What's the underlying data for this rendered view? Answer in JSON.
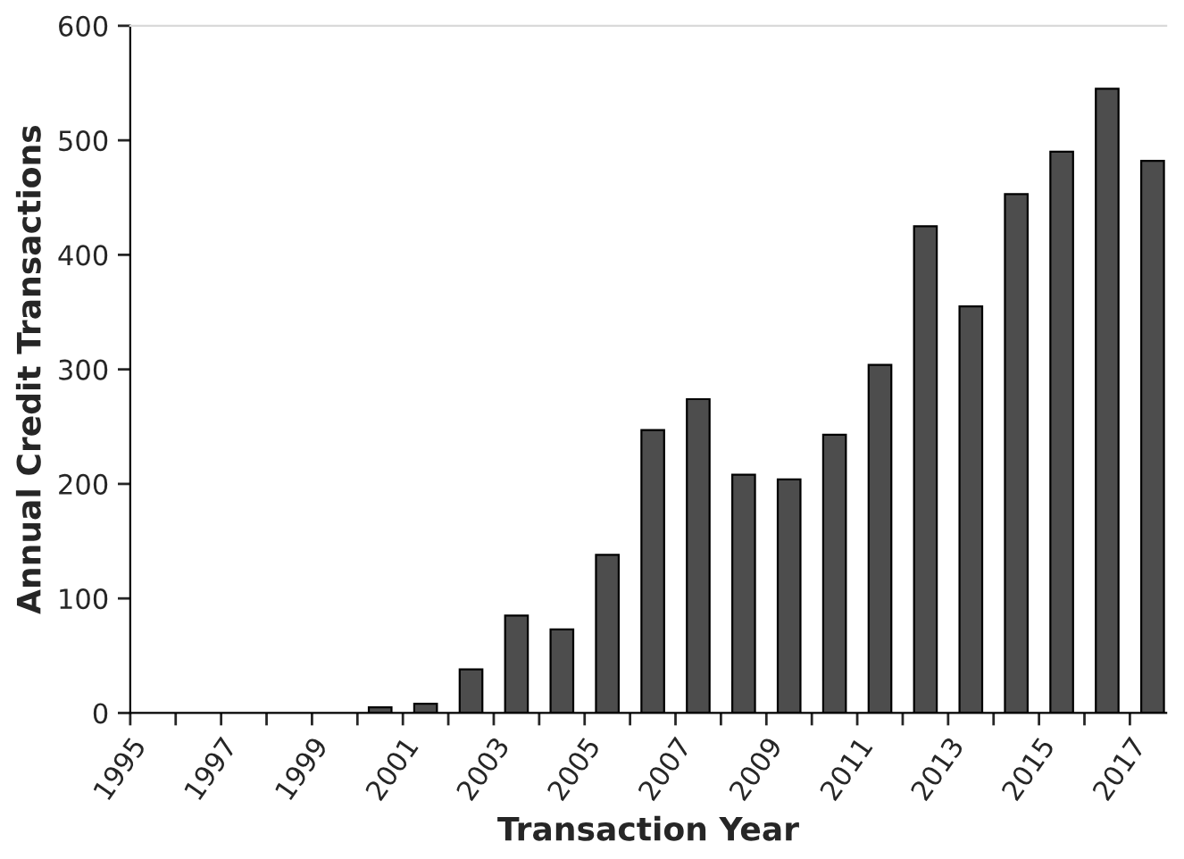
{
  "chart_data": {
    "type": "bar",
    "xlabel": "Transaction Year",
    "ylabel": "Annual Credit Transactions",
    "x": [
      2000.5,
      2001.5,
      2002.5,
      2003.5,
      2004.5,
      2005.5,
      2006.5,
      2007.5,
      2008.5,
      2009.5,
      2010.5,
      2011.5,
      2012.5,
      2013.5,
      2014.5,
      2015.5,
      2016.5,
      2017.5
    ],
    "values": [
      5,
      8,
      38,
      85,
      73,
      138,
      247,
      274,
      208,
      204,
      243,
      304,
      425,
      355,
      453,
      490,
      545,
      482
    ],
    "color": "#4d4d4d",
    "xlim": [
      1995,
      2017.8
    ],
    "xticks": [
      1995,
      {
        "value": 1996,
        "label": null
      },
      1997,
      {
        "value": 1998,
        "label": null
      },
      1999,
      {
        "value": 2000,
        "label": null
      },
      2001,
      {
        "value": 2002,
        "label": null
      },
      2003,
      {
        "value": 2004,
        "label": null
      },
      2005,
      {
        "value": 2006,
        "label": null
      },
      2007,
      {
        "value": 2008,
        "label": null
      },
      2009,
      {
        "value": 2010,
        "label": null
      },
      2011,
      {
        "value": 2012,
        "label": null
      },
      2013,
      {
        "value": 2014,
        "label": null
      },
      2015,
      {
        "value": 2016,
        "label": null
      },
      2017
    ],
    "ylim": [
      0,
      600
    ],
    "yticks": [
      0,
      100,
      200,
      300,
      400,
      500,
      600
    ],
    "grid": false,
    "legend": false
  }
}
